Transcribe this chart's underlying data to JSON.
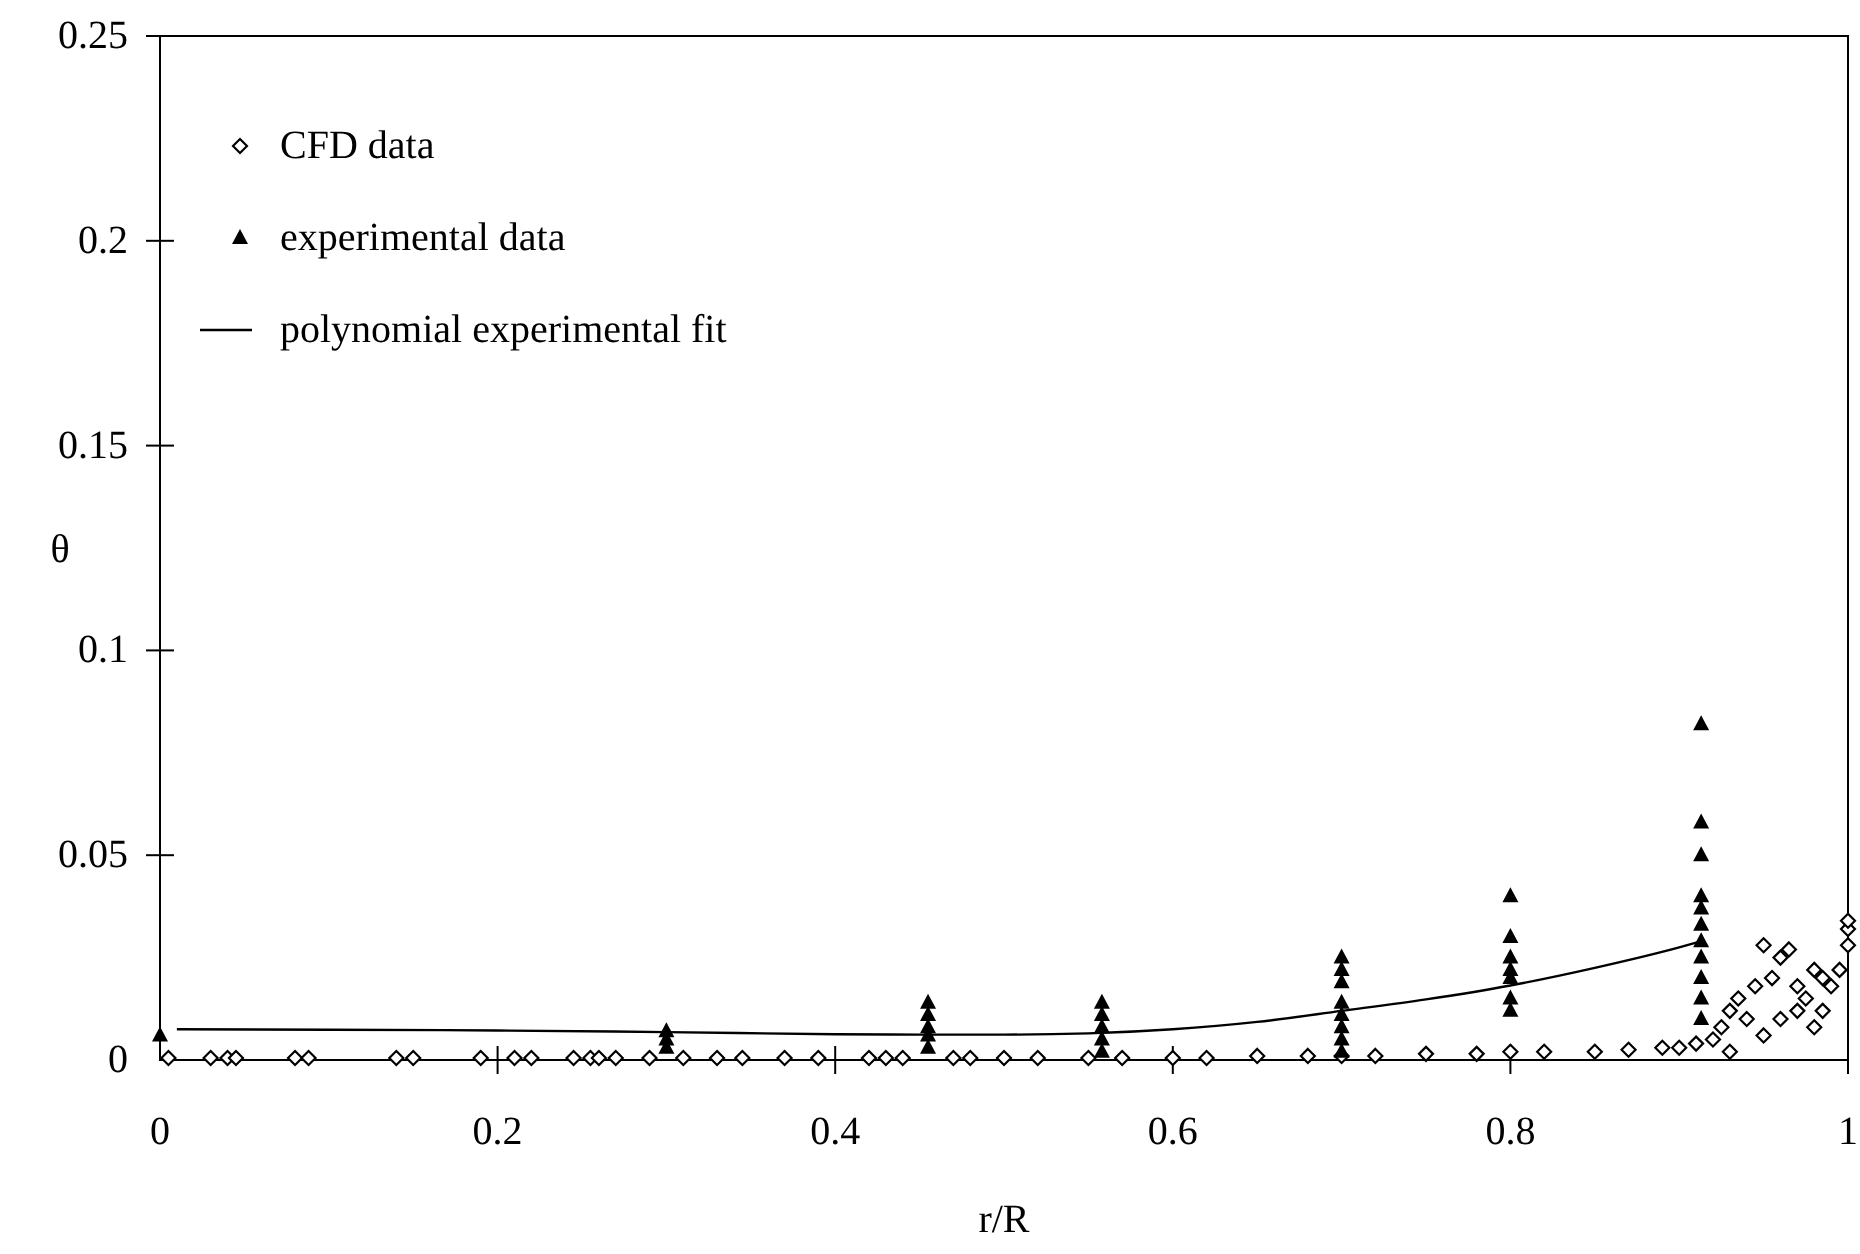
{
  "chart_data": {
    "type": "scatter",
    "xlabel": "r/R",
    "ylabel": "θ",
    "xlim": [
      0,
      1
    ],
    "xticks": [
      0,
      0.2,
      0.4,
      0.6,
      0.8,
      1
    ],
    "ylim": [
      0,
      0.25
    ],
    "yticks": [
      0,
      0.05,
      0.1,
      0.15,
      0.2,
      0.25
    ],
    "grid": false,
    "legend": "top left",
    "series": [
      {
        "name": "CFD data",
        "type": "scatter",
        "marker": "diamond",
        "color": "#000000",
        "x": [
          0.005,
          0.03,
          0.04,
          0.045,
          0.08,
          0.088,
          0.14,
          0.15,
          0.19,
          0.21,
          0.22,
          0.245,
          0.255,
          0.26,
          0.27,
          0.29,
          0.31,
          0.33,
          0.345,
          0.37,
          0.39,
          0.42,
          0.43,
          0.44,
          0.47,
          0.48,
          0.5,
          0.52,
          0.55,
          0.57,
          0.6,
          0.62,
          0.65,
          0.68,
          0.7,
          0.72,
          0.75,
          0.78,
          0.8,
          0.82,
          0.85,
          0.87,
          0.89,
          0.9,
          0.91,
          0.92,
          0.925,
          0.93,
          0.935,
          0.94,
          0.945,
          0.95,
          0.955,
          0.96,
          0.965,
          0.97,
          0.975,
          0.98,
          0.985,
          0.99,
          0.995,
          1,
          1,
          1,
          0.93,
          0.95,
          0.96,
          0.97,
          0.98,
          0.985
        ],
        "values": [
          0.0005,
          0.0005,
          0.0005,
          0.0005,
          0.0005,
          0.0005,
          0.0005,
          0.0005,
          0.0005,
          0.0005,
          0.0005,
          0.0005,
          0.0005,
          0.0005,
          0.0005,
          0.0005,
          0.0005,
          0.0005,
          0.0005,
          0.0005,
          0.0005,
          0.0005,
          0.0005,
          0.0005,
          0.0005,
          0.0005,
          0.0005,
          0.0005,
          0.0005,
          0.0005,
          0.0005,
          0.0005,
          0.001,
          0.001,
          0.001,
          0.001,
          0.0015,
          0.0015,
          0.002,
          0.002,
          0.002,
          0.0025,
          0.003,
          0.003,
          0.004,
          0.005,
          0.008,
          0.012,
          0.015,
          0.01,
          0.018,
          0.028,
          0.02,
          0.025,
          0.027,
          0.018,
          0.015,
          0.022,
          0.02,
          0.018,
          0.022,
          0.028,
          0.032,
          0.034,
          0.002,
          0.006,
          0.01,
          0.012,
          0.008,
          0.012
        ]
      },
      {
        "name": "experimental data",
        "type": "scatter",
        "marker": "triangle",
        "color": "#000000",
        "x": [
          0,
          0.3,
          0.3,
          0.3,
          0.455,
          0.455,
          0.455,
          0.455,
          0.455,
          0.558,
          0.558,
          0.558,
          0.558,
          0.558,
          0.7,
          0.7,
          0.7,
          0.7,
          0.7,
          0.7,
          0.7,
          0.7,
          0.8,
          0.8,
          0.8,
          0.8,
          0.8,
          0.8,
          0.8,
          0.913,
          0.913,
          0.913,
          0.913,
          0.913,
          0.913,
          0.913,
          0.913,
          0.913,
          0.913,
          0.913
        ],
        "values": [
          0.006,
          0.003,
          0.005,
          0.007,
          0.003,
          0.006,
          0.008,
          0.011,
          0.014,
          0.002,
          0.005,
          0.008,
          0.011,
          0.014,
          0.002,
          0.005,
          0.008,
          0.011,
          0.014,
          0.019,
          0.022,
          0.025,
          0.012,
          0.015,
          0.02,
          0.022,
          0.025,
          0.03,
          0.04,
          0.01,
          0.015,
          0.02,
          0.025,
          0.029,
          0.033,
          0.037,
          0.04,
          0.05,
          0.058,
          0.082
        ]
      },
      {
        "name": "polynomial experimental fit",
        "type": "line",
        "marker": "none",
        "color": "#000000",
        "x": [
          0.01,
          0.1,
          0.2,
          0.3,
          0.4,
          0.45,
          0.5,
          0.55,
          0.6,
          0.65,
          0.7,
          0.75,
          0.8,
          0.85,
          0.9,
          0.913
        ],
        "values": [
          0.0075,
          0.0074,
          0.0072,
          0.0068,
          0.0063,
          0.0062,
          0.0062,
          0.0065,
          0.0075,
          0.0093,
          0.012,
          0.0148,
          0.0182,
          0.0225,
          0.0275,
          0.029
        ]
      }
    ]
  }
}
